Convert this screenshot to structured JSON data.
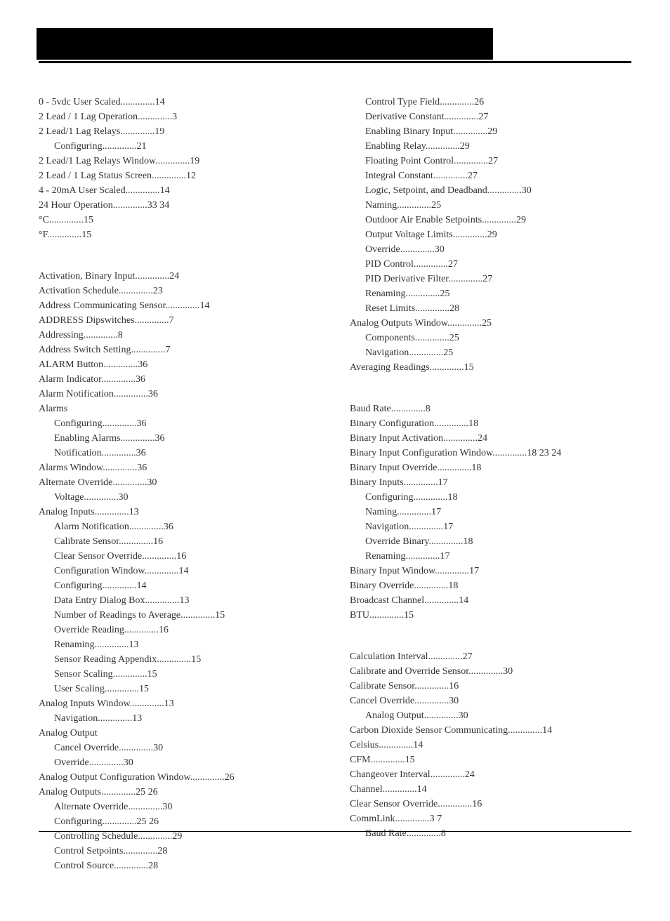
{
  "colors": {
    "text": "#333333",
    "bg": "#ffffff",
    "bar": "#000000"
  },
  "typography": {
    "family": "Georgia, Times New Roman, serif",
    "size_pt": 11,
    "line_height": 1.5
  },
  "leftColumn": [
    {
      "entries": [
        {
          "label": "0 - 5vdc User Scaled",
          "pages": "14",
          "indent": 0
        },
        {
          "label": "2 Lead / 1 Lag Operation",
          "pages": "3",
          "indent": 0
        },
        {
          "label": "2 Lead/1 Lag Relays",
          "pages": "19",
          "indent": 0
        },
        {
          "label": "Configuring",
          "pages": "21",
          "indent": 1
        },
        {
          "label": "2 Lead/1 Lag Relays Window",
          "pages": "19",
          "indent": 0
        },
        {
          "label": "2 Lead / 1 Lag Status Screen",
          "pages": "12",
          "indent": 0
        },
        {
          "label": "4 - 20mA User Scaled",
          "pages": "14",
          "indent": 0
        },
        {
          "label": "24 Hour Operation",
          "pages": "33 34",
          "indent": 0
        },
        {
          "label": "°C",
          "pages": "15",
          "indent": 0
        },
        {
          "label": "°F",
          "pages": "15",
          "indent": 0
        }
      ]
    },
    {
      "entries": [
        {
          "label": "Activation, Binary Input",
          "pages": "24",
          "indent": 0
        },
        {
          "label": "Activation Schedule",
          "pages": "23",
          "indent": 0
        },
        {
          "label": "Address  Communicating Sensor",
          "pages": "14",
          "indent": 0
        },
        {
          "label": "ADDRESS Dipswitches",
          "pages": "7",
          "indent": 0
        },
        {
          "label": "Addressing",
          "pages": "8",
          "indent": 0
        },
        {
          "label": "Address Switch Setting",
          "pages": "7",
          "indent": 0
        },
        {
          "label": "ALARM Button",
          "pages": "36",
          "indent": 0
        },
        {
          "label": "Alarm Indicator",
          "pages": "36",
          "indent": 0
        },
        {
          "label": "Alarm Notification",
          "pages": "36",
          "indent": 0
        },
        {
          "label": "Alarms",
          "pages": "",
          "indent": 0
        },
        {
          "label": "Configuring",
          "pages": "36",
          "indent": 1
        },
        {
          "label": "Enabling Alarms",
          "pages": "36",
          "indent": 1
        },
        {
          "label": "Notification",
          "pages": "36",
          "indent": 1
        },
        {
          "label": "Alarms Window",
          "pages": "36",
          "indent": 0
        },
        {
          "label": "Alternate Override",
          "pages": "30",
          "indent": 0
        },
        {
          "label": "Voltage",
          "pages": "30",
          "indent": 1
        },
        {
          "label": "Analog Inputs",
          "pages": "13",
          "indent": 0
        },
        {
          "label": "Alarm Notification",
          "pages": "36",
          "indent": 1
        },
        {
          "label": "Calibrate Sensor",
          "pages": "16",
          "indent": 1
        },
        {
          "label": "Clear Sensor Override",
          "pages": "16",
          "indent": 1
        },
        {
          "label": "Configuration Window",
          "pages": "14",
          "indent": 1
        },
        {
          "label": "Configuring",
          "pages": "14",
          "indent": 1
        },
        {
          "label": "Data Entry Dialog Box",
          "pages": "13",
          "indent": 1
        },
        {
          "label": "Number of Readings to Average",
          "pages": "15",
          "indent": 1
        },
        {
          "label": "Override Reading",
          "pages": "16",
          "indent": 1
        },
        {
          "label": "Renaming",
          "pages": "13",
          "indent": 1
        },
        {
          "label": "Sensor Reading Appendix",
          "pages": "15",
          "indent": 1
        },
        {
          "label": "Sensor Scaling",
          "pages": "15",
          "indent": 1
        },
        {
          "label": "User Scaling",
          "pages": "15",
          "indent": 1
        },
        {
          "label": "Analog Inputs Window",
          "pages": "13",
          "indent": 0
        },
        {
          "label": "Navigation",
          "pages": "13",
          "indent": 1
        },
        {
          "label": "Analog Output",
          "pages": "",
          "indent": 0
        },
        {
          "label": "Cancel Override",
          "pages": "30",
          "indent": 1
        },
        {
          "label": "Override",
          "pages": "30",
          "indent": 1
        },
        {
          "label": "Analog Output Configuration Window",
          "pages": "26",
          "indent": 0
        },
        {
          "label": "Analog Outputs",
          "pages": "25 26",
          "indent": 0
        },
        {
          "label": "Alternate Override",
          "pages": "30",
          "indent": 1
        },
        {
          "label": "Configuring",
          "pages": "25 26",
          "indent": 1
        },
        {
          "label": "Controlling Schedule",
          "pages": "29",
          "indent": 1
        },
        {
          "label": "Control Setpoints",
          "pages": "28",
          "indent": 1
        },
        {
          "label": "Control Source",
          "pages": "28",
          "indent": 1
        }
      ]
    }
  ],
  "rightColumn": [
    {
      "entries": [
        {
          "label": "Control Type Field",
          "pages": "26",
          "indent": 1
        },
        {
          "label": "Derivative Constant",
          "pages": "27",
          "indent": 1
        },
        {
          "label": "Enabling Binary Input",
          "pages": "29",
          "indent": 1
        },
        {
          "label": "Enabling Relay",
          "pages": "29",
          "indent": 1
        },
        {
          "label": "Floating Point Control",
          "pages": "27",
          "indent": 1
        },
        {
          "label": "Integral Constant",
          "pages": "27",
          "indent": 1
        },
        {
          "label": "Logic, Setpoint, and Deadband",
          "pages": "30",
          "indent": 1
        },
        {
          "label": "Naming",
          "pages": "25",
          "indent": 1
        },
        {
          "label": "Outdoor Air Enable Setpoints",
          "pages": "29",
          "indent": 1
        },
        {
          "label": "Output Voltage Limits",
          "pages": "29",
          "indent": 1
        },
        {
          "label": "Override",
          "pages": "30",
          "indent": 1
        },
        {
          "label": "PID Control",
          "pages": "27",
          "indent": 1
        },
        {
          "label": "PID Derivative Filter",
          "pages": "27",
          "indent": 1
        },
        {
          "label": "Renaming",
          "pages": "25",
          "indent": 1
        },
        {
          "label": "Reset Limits",
          "pages": "28",
          "indent": 1
        },
        {
          "label": "Analog Outputs Window",
          "pages": "25",
          "indent": 0
        },
        {
          "label": "Components",
          "pages": "25",
          "indent": 1
        },
        {
          "label": "Navigation",
          "pages": "25",
          "indent": 1
        },
        {
          "label": "Averaging Readings",
          "pages": "15",
          "indent": 0
        }
      ]
    },
    {
      "entries": [
        {
          "label": "Baud Rate",
          "pages": "8",
          "indent": 0
        },
        {
          "label": "Binary Configuration",
          "pages": "18",
          "indent": 0
        },
        {
          "label": "Binary Input Activation",
          "pages": "24",
          "indent": 0
        },
        {
          "label": "Binary Input Configuration Window",
          "pages": "18 23 24",
          "indent": 0
        },
        {
          "label": "Binary Input Override",
          "pages": "18",
          "indent": 0
        },
        {
          "label": "Binary Inputs",
          "pages": "17",
          "indent": 0
        },
        {
          "label": "Configuring",
          "pages": "18",
          "indent": 1
        },
        {
          "label": "Naming",
          "pages": "17",
          "indent": 1
        },
        {
          "label": "Navigation",
          "pages": "17",
          "indent": 1
        },
        {
          "label": "Override Binary",
          "pages": "18",
          "indent": 1
        },
        {
          "label": "Renaming",
          "pages": "17",
          "indent": 1
        },
        {
          "label": "Binary Input Window",
          "pages": "17",
          "indent": 0
        },
        {
          "label": "Binary Override",
          "pages": "18",
          "indent": 0
        },
        {
          "label": "Broadcast Channel",
          "pages": "14",
          "indent": 0
        },
        {
          "label": "BTU",
          "pages": "15",
          "indent": 0
        }
      ]
    },
    {
      "entries": [
        {
          "label": "Calculation Interval",
          "pages": "27",
          "indent": 0
        },
        {
          "label": "Calibrate and Override Sensor",
          "pages": "30",
          "indent": 0
        },
        {
          "label": "Calibrate Sensor",
          "pages": "16",
          "indent": 0
        },
        {
          "label": "Cancel Override",
          "pages": "30",
          "indent": 0
        },
        {
          "label": "Analog Output",
          "pages": "30",
          "indent": 1
        },
        {
          "label": "Carbon Dioxide Sensor  Communicating",
          "pages": "14",
          "indent": 0
        },
        {
          "label": "Celsius",
          "pages": "14",
          "indent": 0
        },
        {
          "label": "CFM",
          "pages": "15",
          "indent": 0
        },
        {
          "label": "Changeover Interval",
          "pages": "24",
          "indent": 0
        },
        {
          "label": "Channel",
          "pages": "14",
          "indent": 0
        },
        {
          "label": "Clear Sensor Override",
          "pages": "16",
          "indent": 0
        },
        {
          "label": "CommLink",
          "pages": "3 7",
          "indent": 0
        },
        {
          "label": "Baud Rate",
          "pages": "8",
          "indent": 1
        }
      ]
    }
  ]
}
